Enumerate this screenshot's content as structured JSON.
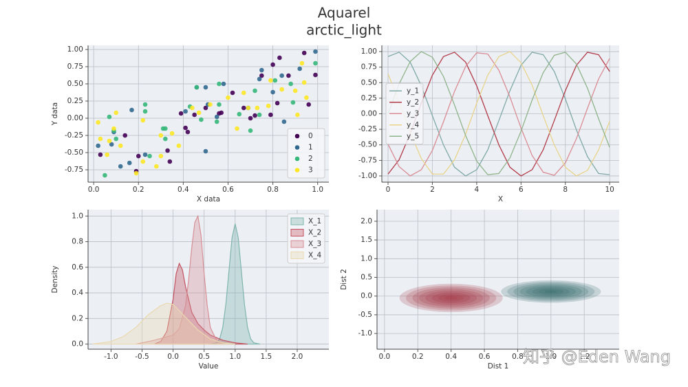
{
  "title": "Aquarel",
  "subtitle": "arctic_light",
  "watermark": "知乎 @Eden Wang",
  "chart_data": [
    {
      "type": "scatter",
      "xlabel": "X data",
      "ylabel": "Y data",
      "grid": true,
      "legend": "lower right",
      "xlim": [
        -0.025,
        1.05
      ],
      "ylim": [
        -0.93,
        1.06
      ],
      "xticks": [
        {
          "value": 0,
          "label": "0.0"
        },
        0.2,
        0.4,
        0.6,
        0.8,
        {
          "value": 1,
          "label": "1.0"
        }
      ],
      "yticks": [
        {
          "value": -0.75,
          "label": "-0.75"
        },
        {
          "value": -0.5,
          "label": "-0.50"
        },
        -0.25,
        {
          "value": 0,
          "label": "0.00"
        },
        0.25,
        {
          "value": 0.5,
          "label": "0.50"
        },
        0.75,
        {
          "value": 1,
          "label": "1.00"
        }
      ],
      "series": [
        {
          "name": "0",
          "color": "#440154",
          "x": [
            0.03,
            0.14,
            0.19,
            0.2,
            0.33,
            0.34,
            0.39,
            0.41,
            0.42,
            0.45,
            0.5,
            0.56,
            0.57,
            0.62,
            0.67,
            0.7,
            0.72,
            0.75,
            0.79,
            0.8,
            0.82,
            0.83,
            0.87,
            0.94,
            0.96,
            0.99
          ],
          "values": [
            -0.53,
            -0.25,
            -0.77,
            -0.55,
            -0.47,
            -0.63,
            0.07,
            -0.14,
            -0.2,
            0.05,
            0.15,
            0.07,
            0.08,
            0.37,
            0.15,
            0.0,
            0.04,
            0.62,
            0.05,
            0.78,
            0.22,
            0.88,
            0.62,
            0.95,
            0.2,
            0.63
          ]
        },
        {
          "name": "1",
          "color": "#31688e",
          "x": [
            0.02,
            0.08,
            0.09,
            0.12,
            0.16,
            0.17,
            0.23,
            0.41,
            0.46,
            0.5,
            0.5,
            0.51,
            0.55,
            0.58,
            0.69,
            0.74,
            0.75,
            0.8,
            0.84,
            0.85,
            0.92,
            0.99
          ],
          "values": [
            -0.4,
            -0.38,
            -0.2,
            -0.7,
            -0.65,
            0.12,
            -0.53,
            0.1,
            0.45,
            0.45,
            -0.48,
            0.2,
            0.02,
            0.5,
            0.15,
            0.57,
            0.7,
            0.38,
            0.62,
            -0.05,
            0.72,
            0.97
          ]
        },
        {
          "name": "2",
          "color": "#35b779",
          "x": [
            0.05,
            0.07,
            0.09,
            0.1,
            0.23,
            0.23,
            0.25,
            0.31,
            0.32,
            0.32,
            0.43,
            0.46,
            0.48,
            0.55,
            0.56,
            0.56,
            0.65,
            0.7,
            0.72,
            0.74,
            0.81,
            0.88,
            0.89,
            0.99
          ],
          "values": [
            -0.83,
            0.02,
            -0.18,
            -0.3,
            0.2,
            0.1,
            -0.55,
            -0.15,
            -0.15,
            -0.3,
            0.17,
            0.45,
            -0.02,
            -0.05,
            0.5,
            0.2,
            0.06,
            -0.18,
            0.4,
            0.05,
            0.55,
            0.5,
            0.23,
            0.8
          ]
        },
        {
          "name": "3",
          "color": "#fde725",
          "x": [
            0.02,
            0.03,
            0.06,
            0.07,
            0.09,
            0.1,
            0.12,
            0.19,
            0.22,
            0.22,
            0.28,
            0.3,
            0.3,
            0.35,
            0.38,
            0.44,
            0.47,
            0.52,
            0.6,
            0.64,
            0.67,
            0.69,
            0.73,
            0.78,
            0.79,
            0.84,
            0.9,
            0.91,
            0.93,
            0.94,
            0.95
          ],
          "values": [
            -0.06,
            -0.3,
            -0.53,
            -0.33,
            -0.15,
            0.08,
            -0.4,
            -0.8,
            -0.63,
            -0.03,
            -0.7,
            -0.55,
            -0.25,
            -0.22,
            -0.4,
            0.15,
            0.08,
            0.2,
            0.3,
            -0.15,
            0.37,
            0.15,
            0.15,
            0.18,
            0.55,
            0.42,
            0.4,
            0.05,
            0.8,
            0.52,
            0.3
          ]
        }
      ]
    },
    {
      "type": "line",
      "xlabel": "X",
      "grid": true,
      "legend": "center left",
      "xlim": [
        -0.28,
        10.43
      ],
      "ylim": [
        -1.1,
        1.1
      ],
      "xticks": [
        0,
        2,
        4,
        6,
        8,
        10
      ],
      "yticks": [
        {
          "value": -1,
          "label": "-1.00"
        },
        {
          "value": -0.75,
          "label": "-0.75"
        },
        {
          "value": -0.5,
          "label": "-0.50"
        },
        -0.25,
        {
          "value": 0,
          "label": "0.00"
        },
        0.25,
        {
          "value": 0.5,
          "label": "0.50"
        },
        0.75,
        {
          "value": 1,
          "label": "1.00"
        }
      ],
      "x": [
        0,
        0.5,
        1,
        1.5,
        2,
        2.5,
        3,
        3.5,
        4,
        4.5,
        5,
        5.5,
        6,
        6.5,
        7,
        7.5,
        8,
        8.5,
        9,
        9.5,
        10
      ],
      "series": [
        {
          "name": "y_1",
          "color": "#7fa9a6",
          "values": [
            0.92,
            0.99,
            0.83,
            0.45,
            -0.03,
            -0.5,
            -0.86,
            -1.0,
            -0.9,
            -0.58,
            -0.11,
            0.37,
            0.78,
            0.99,
            0.95,
            0.68,
            0.24,
            -0.26,
            -0.69,
            -0.96,
            -0.98
          ]
        },
        {
          "name": "y_2",
          "color": "#b23a48",
          "values": [
            -0.97,
            -0.74,
            -0.32,
            0.17,
            0.62,
            0.92,
            0.99,
            0.83,
            0.45,
            -0.03,
            -0.5,
            -0.86,
            -1.0,
            -0.9,
            -0.58,
            -0.11,
            0.37,
            0.78,
            0.99,
            0.95,
            0.68
          ]
        },
        {
          "name": "y_3",
          "color": "#d98b93",
          "values": [
            -0.49,
            -0.85,
            -1.0,
            -0.9,
            -0.59,
            -0.13,
            0.36,
            0.76,
            0.98,
            0.96,
            0.7,
            0.27,
            -0.23,
            -0.67,
            -0.94,
            -0.99,
            -0.79,
            -0.4,
            0.09,
            0.56,
            0.89
          ]
        },
        {
          "name": "y_4",
          "color": "#e8d48b",
          "values": [
            0.64,
            0.19,
            -0.3,
            -0.72,
            -0.97,
            -0.97,
            -0.74,
            -0.33,
            0.17,
            0.62,
            0.92,
            1.0,
            0.82,
            0.46,
            -0.03,
            -0.5,
            -0.86,
            -1.0,
            -0.91,
            -0.58,
            -0.12
          ]
        },
        {
          "name": "y_5",
          "color": "#8fb38a",
          "values": [
            0,
            0.48,
            0.84,
            1.0,
            0.91,
            0.6,
            0.14,
            -0.35,
            -0.76,
            -0.98,
            -0.96,
            -0.71,
            -0.28,
            0.22,
            0.66,
            0.94,
            0.99,
            0.8,
            0.41,
            -0.08,
            -0.54
          ]
        }
      ]
    },
    {
      "type": "area",
      "xlabel": "Value",
      "ylabel": "Density",
      "grid": true,
      "legend": "upper right",
      "xlim": [
        -1.37,
        2.51
      ],
      "ylim": [
        -0.04,
        1.05
      ],
      "xticks": [
        {
          "value": -1,
          "label": "-1.0"
        },
        -0.5,
        {
          "value": 0,
          "label": "0.0"
        },
        0.5,
        {
          "value": 1,
          "label": "1.0"
        },
        1.5,
        {
          "value": 2,
          "label": "2.0"
        }
      ],
      "yticks": [
        {
          "value": 0,
          "label": "0.0"
        },
        0.2,
        0.4,
        0.6,
        0.8,
        {
          "value": 1,
          "label": "1.0"
        }
      ],
      "series": [
        {
          "name": "X_1",
          "color": "#7fb5ad",
          "x": [
            0.6,
            0.7,
            0.75,
            0.8,
            0.85,
            0.9,
            0.95,
            1.0,
            1.05,
            1.1,
            1.15,
            1.2,
            1.25,
            1.3,
            1.4
          ],
          "values": [
            0,
            0.01,
            0.04,
            0.13,
            0.31,
            0.57,
            0.83,
            0.94,
            0.83,
            0.57,
            0.31,
            0.13,
            0.04,
            0.01,
            0
          ]
        },
        {
          "name": "X_2",
          "color": "#c2505e",
          "x": [
            -0.3,
            -0.2,
            -0.1,
            0,
            0.05,
            0.1,
            0.15,
            0.2,
            0.3,
            0.4,
            0.5,
            0.6,
            0.8,
            1.0,
            1.2
          ],
          "values": [
            0,
            0.02,
            0.1,
            0.35,
            0.55,
            0.63,
            0.58,
            0.45,
            0.25,
            0.16,
            0.11,
            0.07,
            0.03,
            0.01,
            0
          ]
        },
        {
          "name": "X_3",
          "color": "#d68e95",
          "x": [
            -0.6,
            -0.3,
            0,
            0.1,
            0.2,
            0.25,
            0.3,
            0.35,
            0.4,
            0.45,
            0.5,
            0.55,
            0.6,
            0.7,
            0.8
          ],
          "values": [
            0,
            0.03,
            0.07,
            0.12,
            0.3,
            0.5,
            0.75,
            0.95,
            1.0,
            0.85,
            0.55,
            0.3,
            0.13,
            0.03,
            0
          ]
        },
        {
          "name": "X_4",
          "color": "#ead9b0",
          "x": [
            -1.3,
            -1.0,
            -0.8,
            -0.6,
            -0.4,
            -0.2,
            -0.1,
            0,
            0.2,
            0.4,
            0.6,
            0.8,
            1.0
          ],
          "values": [
            0,
            0.02,
            0.06,
            0.13,
            0.23,
            0.3,
            0.32,
            0.31,
            0.21,
            0.11,
            0.04,
            0.01,
            0
          ]
        }
      ]
    },
    {
      "type": "kde2d",
      "xlabel": "Dist 1",
      "ylabel": "Dist 2",
      "grid": true,
      "xlim": [
        -0.045,
        1.41
      ],
      "ylim": [
        -1.42,
        2.31
      ],
      "xticks": [
        {
          "value": 0,
          "label": "0.0"
        },
        0.2,
        0.4,
        0.6,
        0.8,
        {
          "value": 1,
          "label": "1.0"
        },
        1.2
      ],
      "yticks": [
        {
          "value": -1,
          "label": "-1.0"
        },
        -0.5,
        {
          "value": 0,
          "label": "0.0"
        },
        0.5,
        {
          "value": 1,
          "label": "1.0"
        },
        1.5,
        {
          "value": 2,
          "label": "2.0"
        }
      ],
      "series": [
        {
          "color": "#9e2f3c",
          "x": 0.4,
          "y": -0.05,
          "x_spread": 0.31,
          "y_spread": 0.38
        },
        {
          "color": "#2f6362",
          "x": 1.0,
          "y": 0.12,
          "x_spread": 0.3,
          "y_spread": 0.3
        }
      ]
    }
  ]
}
